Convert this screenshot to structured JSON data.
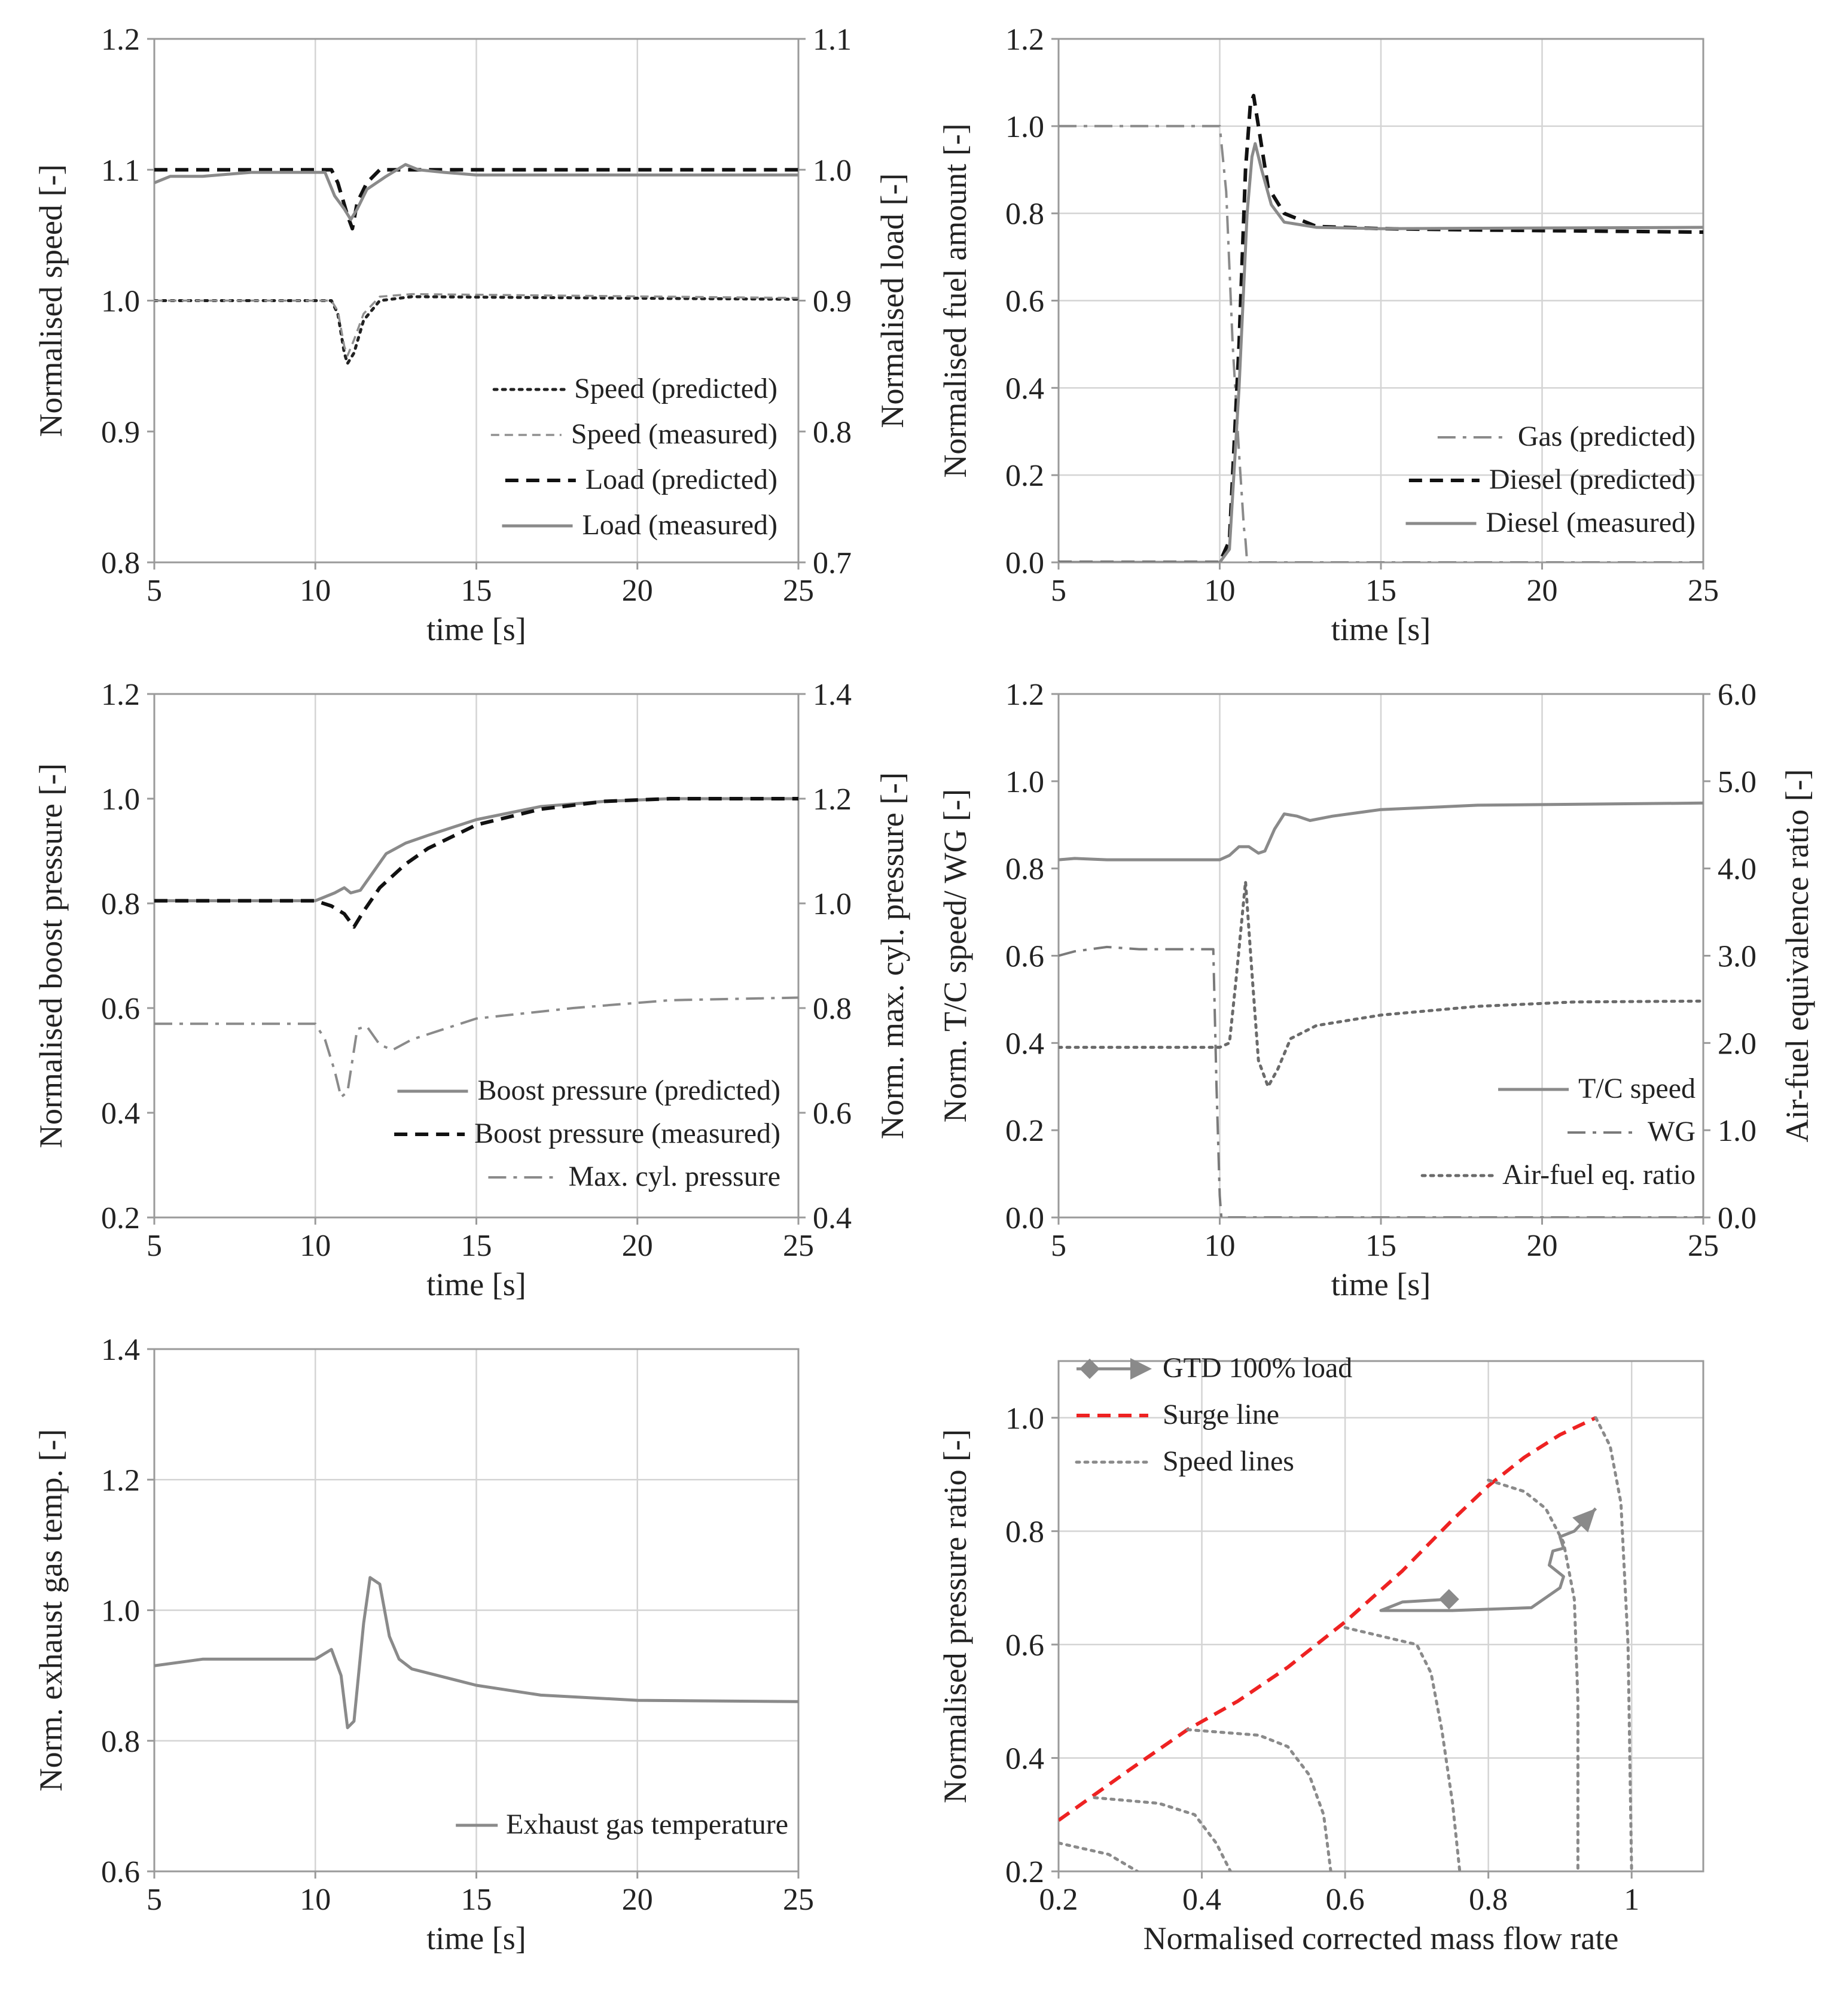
{
  "figure": {
    "description": "Six-panel figure of engine transient response"
  },
  "chart_data": [
    {
      "id": "p1",
      "type": "line",
      "xlabel": "time [s]",
      "ylabel": "Normalised speed [-]",
      "y2label": "Normalised load [-]",
      "xlim": [
        5,
        25
      ],
      "ylim": [
        0.8,
        1.2
      ],
      "y2lim": [
        0.7,
        1.1
      ],
      "xticks": [
        5,
        10,
        15,
        20,
        25
      ],
      "yticks": [
        0.8,
        0.9,
        1.0,
        1.1,
        1.2
      ],
      "y2ticks": [
        0.7,
        0.8,
        0.9,
        1.0,
        1.1
      ],
      "tick_decimals": 1,
      "grid": "vertical",
      "legend": "bottom-right",
      "series": [
        {
          "name": "Speed (predicted)",
          "axis": "y",
          "style": "dotted",
          "color": "#222222",
          "x": [
            5,
            10.5,
            10.7,
            10.9,
            11.0,
            11.2,
            11.5,
            12,
            13,
            25
          ],
          "y": [
            1.0,
            1.0,
            0.99,
            0.96,
            0.952,
            0.96,
            0.985,
            1.0,
            1.003,
            1.001
          ]
        },
        {
          "name": "Speed (measured)",
          "axis": "y",
          "style": "dashed-thin",
          "color": "#909090",
          "x": [
            5,
            10.5,
            10.7,
            10.9,
            11.0,
            11.2,
            11.5,
            12,
            13,
            25
          ],
          "y": [
            1.0,
            1.0,
            0.992,
            0.965,
            0.958,
            0.97,
            0.99,
            1.003,
            1.005,
            1.002
          ]
        },
        {
          "name": "Load (predicted)",
          "axis": "y2",
          "style": "dashed",
          "color": "#111111",
          "x": [
            5,
            10.5,
            10.7,
            11.0,
            11.15,
            11.3,
            11.6,
            12,
            13,
            25
          ],
          "y": [
            1.0,
            1.0,
            0.99,
            0.965,
            0.955,
            0.975,
            0.99,
            1.0,
            1.0,
            1.0
          ]
        },
        {
          "name": "Load (measured)",
          "axis": "y2",
          "style": "solid",
          "color": "#8a8a8a",
          "x": [
            5,
            5.5,
            6.5,
            8,
            10.3,
            10.6,
            10.9,
            11.1,
            11.3,
            11.6,
            12.2,
            12.8,
            13.2,
            14,
            15,
            25
          ],
          "y": [
            0.99,
            0.995,
            0.995,
            0.998,
            0.998,
            0.98,
            0.97,
            0.962,
            0.97,
            0.985,
            0.995,
            1.004,
            1.0,
            0.998,
            0.996,
            0.996
          ]
        }
      ]
    },
    {
      "id": "p2",
      "type": "line",
      "xlabel": "time [s]",
      "ylabel": "Normalised fuel amount [-]",
      "xlim": [
        5,
        25
      ],
      "ylim": [
        0.0,
        1.2
      ],
      "xticks": [
        5,
        10,
        15,
        20,
        25
      ],
      "yticks": [
        0.0,
        0.2,
        0.4,
        0.6,
        0.8,
        1.0,
        1.2
      ],
      "tick_decimals": 1,
      "grid": "both",
      "legend": "bottom-right",
      "series": [
        {
          "name": "Gas (predicted)",
          "axis": "y",
          "style": "dashdot",
          "color": "#8a8a8a",
          "x": [
            5,
            10.0,
            10.2,
            10.4,
            10.6,
            10.75,
            10.8,
            10.85,
            11,
            25
          ],
          "y": [
            1.0,
            1.0,
            0.85,
            0.5,
            0.25,
            0.08,
            0.05,
            0.0,
            0.0,
            0.0
          ]
        },
        {
          "name": "Diesel (predicted)",
          "axis": "y",
          "style": "dashed",
          "color": "#111111",
          "x": [
            5,
            10.0,
            10.3,
            10.6,
            10.8,
            10.95,
            11.05,
            11.2,
            11.5,
            12,
            13,
            15,
            18,
            25
          ],
          "y": [
            0.0,
            0.0,
            0.05,
            0.5,
            0.9,
            1.05,
            1.07,
            1.0,
            0.86,
            0.8,
            0.77,
            0.765,
            0.762,
            0.757
          ]
        },
        {
          "name": "Diesel (measured)",
          "axis": "y",
          "style": "solid",
          "color": "#8a8a8a",
          "x": [
            5,
            10.0,
            10.3,
            10.6,
            10.85,
            11.0,
            11.1,
            11.3,
            11.6,
            12,
            13,
            15,
            25
          ],
          "y": [
            0.0,
            0.0,
            0.03,
            0.4,
            0.8,
            0.93,
            0.96,
            0.9,
            0.82,
            0.78,
            0.768,
            0.765,
            0.768
          ]
        }
      ]
    },
    {
      "id": "p3",
      "type": "line",
      "xlabel": "time [s]",
      "ylabel": "Normalised boost pressure [-]",
      "y2label": "Norm. max. cyl. pressure [-]",
      "xlim": [
        5,
        25
      ],
      "ylim": [
        0.2,
        1.2
      ],
      "y2lim": [
        0.4,
        1.4
      ],
      "xticks": [
        5,
        10,
        15,
        20,
        25
      ],
      "yticks": [
        0.2,
        0.4,
        0.6,
        0.8,
        1.0,
        1.2
      ],
      "y2ticks": [
        0.4,
        0.6,
        0.8,
        1.0,
        1.2,
        1.4
      ],
      "tick_decimals": 1,
      "grid": "vertical",
      "legend": "bottom-right",
      "series": [
        {
          "name": "Boost pressure (predicted)",
          "axis": "y",
          "style": "solid",
          "color": "#8a8a8a",
          "x": [
            5,
            10.0,
            10.6,
            10.9,
            11.1,
            11.4,
            11.8,
            12.2,
            12.8,
            13.5,
            15,
            17,
            19,
            21,
            25
          ],
          "y": [
            0.805,
            0.805,
            0.82,
            0.83,
            0.82,
            0.825,
            0.86,
            0.895,
            0.915,
            0.93,
            0.96,
            0.985,
            0.995,
            1.0,
            1.0
          ]
        },
        {
          "name": "Boost pressure (measured)",
          "axis": "y",
          "style": "dashed",
          "color": "#111111",
          "x": [
            5,
            10.0,
            10.5,
            10.9,
            11.2,
            11.5,
            12,
            12.8,
            13.5,
            15,
            17,
            19,
            21,
            25
          ],
          "y": [
            0.805,
            0.805,
            0.795,
            0.78,
            0.755,
            0.785,
            0.83,
            0.875,
            0.905,
            0.95,
            0.98,
            0.995,
            1.0,
            1.0
          ]
        },
        {
          "name": "Max. cyl. pressure",
          "axis": "y2",
          "style": "dashdot",
          "color": "#8a8a8a",
          "x": [
            5,
            10.0,
            10.3,
            10.6,
            10.8,
            11.0,
            11.3,
            11.6,
            12.0,
            12.4,
            13,
            15,
            18,
            21,
            25
          ],
          "y": [
            0.77,
            0.77,
            0.74,
            0.68,
            0.63,
            0.64,
            0.76,
            0.765,
            0.73,
            0.72,
            0.74,
            0.78,
            0.8,
            0.815,
            0.82
          ]
        }
      ]
    },
    {
      "id": "p4",
      "type": "line",
      "xlabel": "time [s]",
      "ylabel": "Norm. T/C speed/ WG [-]",
      "y2label": "Air-fuel equivalence ratio [-]",
      "xlim": [
        5,
        25
      ],
      "ylim": [
        0.0,
        1.2
      ],
      "y2lim": [
        0.0,
        6.0
      ],
      "xticks": [
        5,
        10,
        15,
        20,
        25
      ],
      "yticks": [
        0.0,
        0.2,
        0.4,
        0.6,
        0.8,
        1.0,
        1.2
      ],
      "y2ticks": [
        0.0,
        1.0,
        2.0,
        3.0,
        4.0,
        5.0,
        6.0
      ],
      "tick_decimals": 1,
      "grid": "vertical",
      "legend": "bottom-right",
      "series": [
        {
          "name": "T/C speed",
          "axis": "y",
          "style": "solid",
          "color": "#8a8a8a",
          "x": [
            5,
            5.5,
            6.5,
            10.0,
            10.3,
            10.6,
            10.9,
            11.2,
            11.4,
            11.7,
            12.0,
            12.4,
            12.8,
            13.5,
            15,
            18,
            25
          ],
          "y": [
            0.82,
            0.823,
            0.82,
            0.82,
            0.83,
            0.85,
            0.85,
            0.835,
            0.84,
            0.89,
            0.925,
            0.92,
            0.91,
            0.92,
            0.935,
            0.945,
            0.95
          ]
        },
        {
          "name": "WG",
          "axis": "y",
          "style": "dashdot",
          "color": "#7a7a7a",
          "x": [
            5,
            5.5,
            6.5,
            7.5,
            9.5,
            9.8,
            9.9,
            10.0,
            10.05,
            25
          ],
          "y": [
            0.6,
            0.61,
            0.62,
            0.615,
            0.615,
            0.615,
            0.3,
            0.05,
            0.0,
            0.0
          ]
        },
        {
          "name": "Air-fuel eq. ratio",
          "axis": "y2",
          "style": "dotted",
          "color": "#6a6a6a",
          "x": [
            5,
            10.0,
            10.3,
            10.5,
            10.8,
            11.0,
            11.2,
            11.5,
            11.8,
            12.2,
            13,
            15,
            18,
            21,
            25
          ],
          "y": [
            1.95,
            1.95,
            2.0,
            2.7,
            3.85,
            2.8,
            1.8,
            1.5,
            1.7,
            2.05,
            2.2,
            2.32,
            2.42,
            2.47,
            2.48
          ]
        }
      ]
    },
    {
      "id": "p5",
      "type": "line",
      "xlabel": "time [s]",
      "ylabel": "Norm. exhaust gas temp. [-]",
      "xlim": [
        5,
        25
      ],
      "ylim": [
        0.6,
        1.4
      ],
      "xticks": [
        5,
        10,
        15,
        20,
        25
      ],
      "yticks": [
        0.6,
        0.8,
        1.0,
        1.2,
        1.4
      ],
      "tick_decimals": 1,
      "grid": "both",
      "legend": "bottom-right",
      "series": [
        {
          "name": "Exhaust gas temperature",
          "axis": "y",
          "style": "solid",
          "color": "#8a8a8a",
          "x": [
            5,
            6.5,
            10.0,
            10.5,
            10.8,
            11.0,
            11.2,
            11.5,
            11.7,
            12.0,
            12.3,
            12.6,
            13.0,
            15,
            17,
            20,
            25
          ],
          "y": [
            0.915,
            0.925,
            0.925,
            0.94,
            0.9,
            0.82,
            0.83,
            0.98,
            1.05,
            1.04,
            0.96,
            0.925,
            0.91,
            0.885,
            0.87,
            0.862,
            0.86
          ]
        }
      ]
    },
    {
      "id": "p6",
      "type": "line",
      "xlabel": "Normalised corrected mass flow rate",
      "ylabel": "Normalised pressure ratio [-]",
      "xlim": [
        0.2,
        1.1
      ],
      "ylim": [
        0.2,
        1.1
      ],
      "xticks": [
        0.2,
        0.4,
        0.6,
        0.8,
        1.0
      ],
      "yticks": [
        0.2,
        0.4,
        0.6,
        0.8,
        1.0
      ],
      "tick_decimals": 1,
      "grid": "both",
      "legend": "top-left",
      "series": [
        {
          "name": "GTD 100% load",
          "axis": "y",
          "style": "solid",
          "color": "#8a8a8a",
          "marker": "diamond-start-arrow-end",
          "x": [
            0.745,
            0.68,
            0.65,
            0.75,
            0.86,
            0.9,
            0.905,
            0.885,
            0.89,
            0.905,
            0.9,
            0.92,
            0.95
          ],
          "y": [
            0.68,
            0.675,
            0.66,
            0.66,
            0.665,
            0.7,
            0.72,
            0.74,
            0.765,
            0.77,
            0.79,
            0.8,
            0.84
          ]
        },
        {
          "name": "Surge line",
          "axis": "y",
          "style": "dashed",
          "color": "#ee2222",
          "x": [
            0.2,
            0.3,
            0.38,
            0.45,
            0.52,
            0.6,
            0.68,
            0.75,
            0.8,
            0.85,
            0.9,
            0.95
          ],
          "y": [
            0.29,
            0.38,
            0.45,
            0.5,
            0.56,
            0.64,
            0.73,
            0.82,
            0.88,
            0.93,
            0.97,
            1.0
          ]
        },
        {
          "name": "Speed lines",
          "axis": "y",
          "style": "dotted",
          "color": "#8a8a8a",
          "x": [
            0.2,
            0.27,
            0.31
          ],
          "y": [
            0.25,
            0.23,
            0.2
          ]
        },
        {
          "name": "",
          "axis": "y",
          "style": "dotted",
          "color": "#8a8a8a",
          "x": [
            0.25,
            0.34,
            0.39,
            0.42,
            0.44
          ],
          "y": [
            0.33,
            0.32,
            0.3,
            0.25,
            0.2
          ]
        },
        {
          "name": "",
          "axis": "y",
          "style": "dotted",
          "color": "#8a8a8a",
          "x": [
            0.38,
            0.48,
            0.52,
            0.55,
            0.57,
            0.58
          ],
          "y": [
            0.45,
            0.44,
            0.42,
            0.37,
            0.3,
            0.2
          ]
        },
        {
          "name": "",
          "axis": "y",
          "style": "dotted",
          "color": "#8a8a8a",
          "x": [
            0.6,
            0.7,
            0.72,
            0.735,
            0.75,
            0.76
          ],
          "y": [
            0.63,
            0.6,
            0.55,
            0.45,
            0.32,
            0.2
          ]
        },
        {
          "name": "",
          "axis": "y",
          "style": "dotted",
          "color": "#8a8a8a",
          "x": [
            0.8,
            0.85,
            0.88,
            0.905,
            0.92,
            0.925,
            0.925
          ],
          "y": [
            0.89,
            0.87,
            0.84,
            0.78,
            0.68,
            0.5,
            0.2
          ]
        },
        {
          "name": "",
          "axis": "y",
          "style": "dotted",
          "color": "#8a8a8a",
          "x": [
            0.95,
            0.97,
            0.985,
            0.995,
            1.0
          ],
          "y": [
            1.0,
            0.95,
            0.85,
            0.6,
            0.2
          ]
        }
      ]
    }
  ]
}
